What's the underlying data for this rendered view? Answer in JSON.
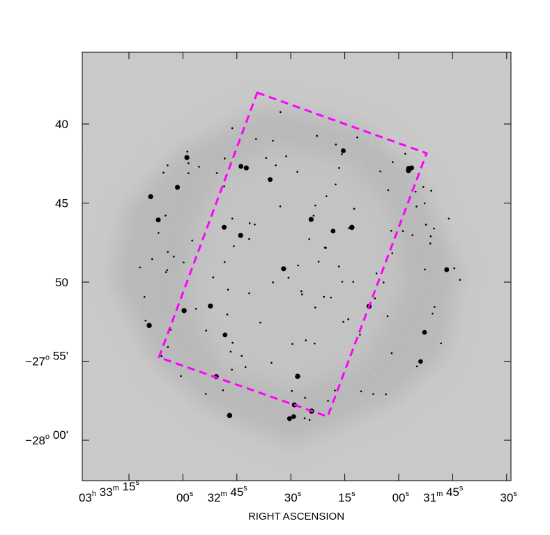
{
  "x_axis": {
    "label": "RIGHT ASCENSION",
    "ticks": [
      [
        [
          "03",
          "h"
        ],
        [
          "33",
          "m"
        ],
        [
          "15",
          "s"
        ]
      ],
      [
        [
          "00",
          "s"
        ]
      ],
      [
        [
          "32",
          "m"
        ],
        [
          "45",
          "s"
        ]
      ],
      [
        [
          "30",
          "s"
        ]
      ],
      [
        [
          "15",
          "s"
        ]
      ],
      [
        [
          "00",
          "s"
        ]
      ],
      [
        [
          "31",
          "m"
        ],
        [
          "45",
          "s"
        ]
      ],
      [
        [
          "30",
          "s"
        ]
      ]
    ]
  },
  "y_axis": {
    "ticks": [
      [
        [
          "40"
        ]
      ],
      [
        [
          "45"
        ]
      ],
      [
        [
          "50"
        ]
      ],
      [
        [
          "−27",
          "o"
        ],
        [
          "55'"
        ]
      ],
      [
        [
          "−28",
          "o"
        ],
        [
          "00'"
        ]
      ]
    ]
  }
}
